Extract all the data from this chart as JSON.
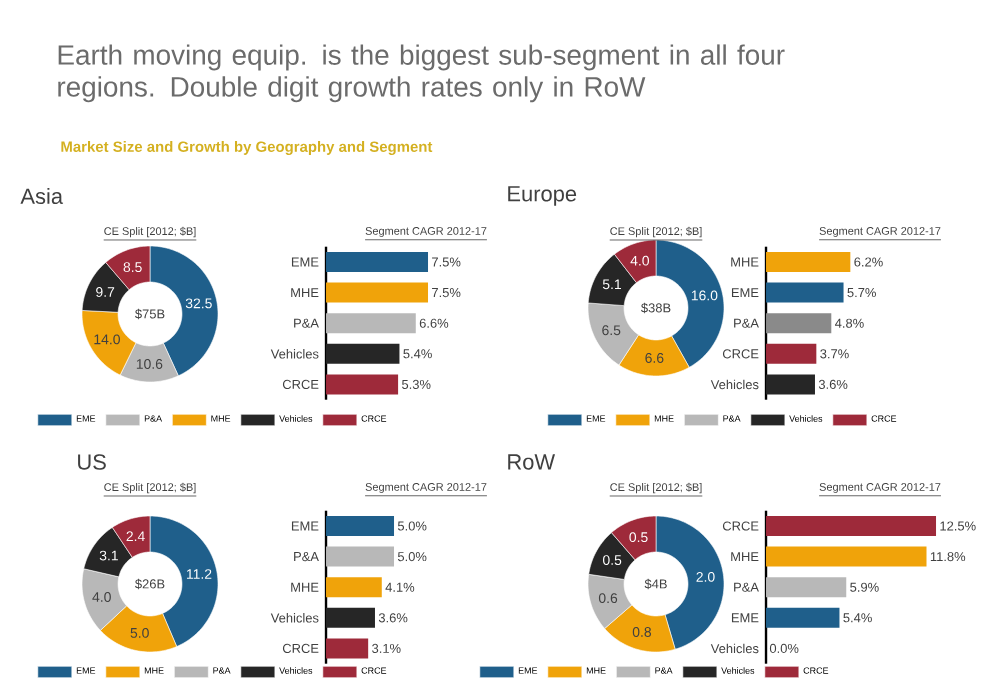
{
  "chart_data": [
    {
      "type": "other",
      "title": "Earth moving equip. is the biggest sub-segment in all four regions. Double digit growth rates only in RoW",
      "subtitle": "Market Size and Growth by Geography and Segment"
    },
    {
      "type": "donut",
      "title": "Asia",
      "subtitle": "CE Split [2012; $B]",
      "categories": [
        "EME",
        "P&A",
        "MHE",
        "Vehicles",
        "CRCE"
      ],
      "values": [
        32.5,
        10.6,
        14.0,
        9.7,
        8.5
      ],
      "value_labels": [
        "32.5",
        "10.6",
        "14.0",
        "9.7",
        "8.5"
      ],
      "colors": [
        "#1f5f8b",
        "#b8b8b8",
        "#f0a30a",
        "#262626",
        "#9e2a3a"
      ],
      "legend": "bottom",
      "annotations": [
        "$75B"
      ]
    },
    {
      "type": "bar",
      "orientation": "horizontal",
      "title": "Segment CAGR 2012-17",
      "categories": [
        "EME",
        "MHE",
        "P&A",
        "Vehicles",
        "CRCE"
      ],
      "values": [
        7.5,
        7.5,
        6.6,
        5.4,
        5.3
      ],
      "value_labels": [
        "7.5%",
        "7.5%",
        "6.6%",
        "5.4%",
        "5.3%"
      ],
      "colors": [
        "#1f5f8b",
        "#f0a30a",
        "#b8b8b8",
        "#262626",
        "#9e2a3a"
      ],
      "tick_labels": "y"
    },
    {
      "type": "donut",
      "title": "Europe",
      "subtitle": "CE Split [2012; $B]",
      "categories": [
        "EME",
        "MHE",
        "P&A",
        "Vehicles",
        "CRCE"
      ],
      "values": [
        16.0,
        6.6,
        6.5,
        5.1,
        4.0
      ],
      "value_labels": [
        "16.0",
        "6.6",
        "6.5",
        "5.1",
        "4.0"
      ],
      "colors": [
        "#1f5f8b",
        "#f0a30a",
        "#b8b8b8",
        "#262626",
        "#9e2a3a"
      ],
      "legend": "bottom",
      "annotations": [
        "$38B"
      ]
    },
    {
      "type": "bar",
      "orientation": "horizontal",
      "title": "Segment CAGR 2012-17",
      "categories": [
        "MHE",
        "EME",
        "P&A",
        "CRCE",
        "Vehicles"
      ],
      "values": [
        6.2,
        5.7,
        4.8,
        3.7,
        3.6
      ],
      "value_labels": [
        "6.2%",
        "5.7%",
        "4.8%",
        "3.7%",
        "3.6%"
      ],
      "colors": [
        "#f0a30a",
        "#1f5f8b",
        "#8a8a8a",
        "#9e2a3a",
        "#262626"
      ],
      "tick_labels": "y"
    },
    {
      "type": "donut",
      "title": "US",
      "subtitle": "CE Split [2012; $B]",
      "categories": [
        "EME",
        "MHE",
        "P&A",
        "Vehicles",
        "CRCE"
      ],
      "values": [
        11.2,
        5.0,
        4.0,
        3.1,
        2.4
      ],
      "value_labels": [
        "11.2",
        "5.0",
        "4.0",
        "3.1",
        "2.4"
      ],
      "colors": [
        "#1f5f8b",
        "#f0a30a",
        "#b8b8b8",
        "#262626",
        "#9e2a3a"
      ],
      "legend": "bottom",
      "annotations": [
        "$26B"
      ]
    },
    {
      "type": "bar",
      "orientation": "horizontal",
      "title": "Segment CAGR 2012-17",
      "categories": [
        "EME",
        "P&A",
        "MHE",
        "Vehicles",
        "CRCE"
      ],
      "values": [
        5.0,
        5.0,
        4.1,
        3.6,
        3.1
      ],
      "value_labels": [
        "5.0%",
        "5.0%",
        "4.1%",
        "3.6%",
        "3.1%"
      ],
      "colors": [
        "#1f5f8b",
        "#b8b8b8",
        "#f0a30a",
        "#262626",
        "#9e2a3a"
      ],
      "tick_labels": "y"
    },
    {
      "type": "donut",
      "title": "RoW",
      "subtitle": "CE Split [2012; $B]",
      "categories": [
        "EME",
        "MHE",
        "P&A",
        "Vehicles",
        "CRCE"
      ],
      "values": [
        2.0,
        0.8,
        0.6,
        0.5,
        0.5
      ],
      "value_labels": [
        "2.0",
        "0.8",
        "0.6",
        "0.5",
        "0.5"
      ],
      "colors": [
        "#1f5f8b",
        "#f0a30a",
        "#b8b8b8",
        "#262626",
        "#9e2a3a"
      ],
      "legend": "bottom",
      "annotations": [
        "$4B"
      ]
    },
    {
      "type": "bar",
      "orientation": "horizontal",
      "title": "Segment CAGR 2012-17",
      "categories": [
        "CRCE",
        "MHE",
        "P&A",
        "EME",
        "Vehicles"
      ],
      "values": [
        12.5,
        11.8,
        5.9,
        5.4,
        0.0
      ],
      "value_labels": [
        "12.5%",
        "11.8%",
        "5.9%",
        "5.4%",
        "0.0%"
      ],
      "colors": [
        "#9e2a3a",
        "#f0a30a",
        "#b8b8b8",
        "#1f5f8b",
        "#262626"
      ],
      "tick_labels": "y"
    }
  ]
}
